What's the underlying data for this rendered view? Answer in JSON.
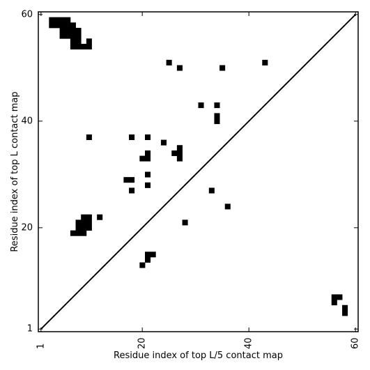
{
  "chart_data": {
    "type": "heatmap",
    "xlabel": "Residue index of top L/5 contact map",
    "ylabel": "Residue index of top L contact map",
    "xlim": [
      0.5,
      60.5
    ],
    "ylim": [
      0.5,
      60.5
    ],
    "xticks": [
      1,
      20,
      40,
      60
    ],
    "yticks": [
      1,
      20,
      40,
      60
    ],
    "x_tick_labels": [
      "1",
      "20",
      "40",
      "60"
    ],
    "y_tick_labels": [
      "1",
      "20",
      "40",
      "60"
    ],
    "x_tick_rotation": -90,
    "diagonal": true,
    "grid": false,
    "cell_color": "#000000",
    "cells": [
      [
        3,
        59
      ],
      [
        4,
        59
      ],
      [
        5,
        59
      ],
      [
        6,
        59
      ],
      [
        3,
        58
      ],
      [
        4,
        58
      ],
      [
        5,
        58
      ],
      [
        6,
        58
      ],
      [
        7,
        58
      ],
      [
        5,
        57
      ],
      [
        6,
        57
      ],
      [
        7,
        57
      ],
      [
        8,
        57
      ],
      [
        5,
        56
      ],
      [
        6,
        56
      ],
      [
        7,
        56
      ],
      [
        8,
        56
      ],
      [
        7,
        55
      ],
      [
        8,
        55
      ],
      [
        10,
        55
      ],
      [
        7,
        54
      ],
      [
        8,
        54
      ],
      [
        9,
        54
      ],
      [
        10,
        54
      ],
      [
        25,
        51
      ],
      [
        43,
        51
      ],
      [
        27,
        50
      ],
      [
        35,
        50
      ],
      [
        31,
        43
      ],
      [
        34,
        43
      ],
      [
        34,
        41
      ],
      [
        34,
        40
      ],
      [
        10,
        37
      ],
      [
        18,
        37
      ],
      [
        21,
        37
      ],
      [
        24,
        36
      ],
      [
        27,
        35
      ],
      [
        21,
        34
      ],
      [
        26,
        34
      ],
      [
        27,
        34
      ],
      [
        20,
        33
      ],
      [
        21,
        33
      ],
      [
        27,
        33
      ],
      [
        21,
        30
      ],
      [
        17,
        29
      ],
      [
        18,
        29
      ],
      [
        21,
        28
      ],
      [
        18,
        27
      ],
      [
        33,
        27
      ],
      [
        36,
        24
      ],
      [
        9,
        22
      ],
      [
        10,
        22
      ],
      [
        12,
        22
      ],
      [
        8,
        21
      ],
      [
        9,
        21
      ],
      [
        10,
        21
      ],
      [
        28,
        21
      ],
      [
        8,
        20
      ],
      [
        9,
        20
      ],
      [
        10,
        20
      ],
      [
        7,
        19
      ],
      [
        8,
        19
      ],
      [
        9,
        19
      ],
      [
        21,
        15
      ],
      [
        22,
        15
      ],
      [
        21,
        14
      ],
      [
        20,
        13
      ],
      [
        56,
        7
      ],
      [
        57,
        7
      ],
      [
        56,
        6
      ],
      [
        58,
        5
      ],
      [
        58,
        4
      ]
    ]
  }
}
